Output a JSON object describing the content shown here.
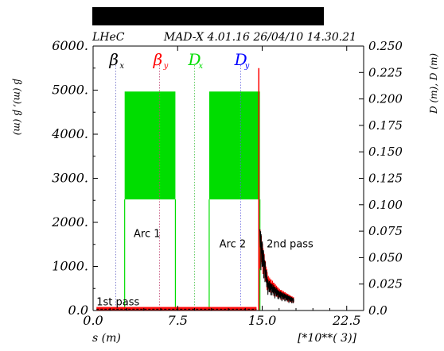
{
  "chart_data": {
    "type": "line",
    "header": {
      "left": "LHeC",
      "right": "MAD-X 4.01.16  26/04/10 14.30.21"
    },
    "xlabel": "s (m)",
    "x_scale_label": "[*10**( 3)]",
    "ylabel_left": "β (m), β (m)",
    "ylabel_right": "D (m), D (m)",
    "xlim": [
      0,
      24
    ],
    "ylim_left": [
      0,
      6000
    ],
    "ylim_right": [
      0,
      0.25
    ],
    "x_ticks": [
      "0.0",
      "7.5",
      "15.0",
      "22.5"
    ],
    "y_ticks_left": [
      "0.0",
      "1000.",
      "2000.",
      "3000.",
      "4000.",
      "5000.",
      "6000."
    ],
    "y_ticks_right": [
      "0.0",
      "0.025",
      "0.050",
      "0.075",
      "0.100",
      "0.125",
      "0.150",
      "0.175",
      "0.200",
      "0.225",
      "0.250"
    ],
    "legend": [
      {
        "symbol": "β",
        "sub": "x",
        "color": "#000000"
      },
      {
        "symbol": "β",
        "sub": "y",
        "color": "#ff0000"
      },
      {
        "symbol": "D",
        "sub": "x",
        "color": "#00dd00"
      },
      {
        "symbol": "D",
        "sub": "y",
        "color": "#0000ff"
      }
    ],
    "annotations": [
      "1st pass",
      "Arc 1",
      "Arc 2",
      "2nd pass"
    ],
    "series": [
      {
        "name": "D",
        "axis": "right",
        "color": "#00dd00",
        "regions": [
          {
            "x_start": 2.8,
            "x_end": 7.3,
            "band_low": 0.105,
            "band_high": 0.207
          },
          {
            "x_start": 10.3,
            "x_end": 14.8,
            "band_low": 0.105,
            "band_high": 0.207
          }
        ]
      },
      {
        "name": "β",
        "axis": "left",
        "color": "#ff0000",
        "points": [
          [
            0,
            20
          ],
          [
            3.0,
            80
          ],
          [
            7.0,
            80
          ],
          [
            10.3,
            80
          ],
          [
            14.5,
            80
          ],
          [
            14.7,
            5500
          ],
          [
            14.8,
            1900
          ],
          [
            15.5,
            800
          ],
          [
            16.5,
            500
          ],
          [
            17.8,
            300
          ]
        ]
      },
      {
        "name": "β",
        "axis": "left",
        "color": "#000000",
        "points": [
          [
            0,
            10
          ],
          [
            3.0,
            40
          ],
          [
            7.0,
            40
          ],
          [
            10.3,
            40
          ],
          [
            14.5,
            40
          ],
          [
            14.8,
            1950
          ],
          [
            15.5,
            700
          ],
          [
            16.5,
            450
          ],
          [
            17.8,
            280
          ]
        ]
      }
    ]
  }
}
